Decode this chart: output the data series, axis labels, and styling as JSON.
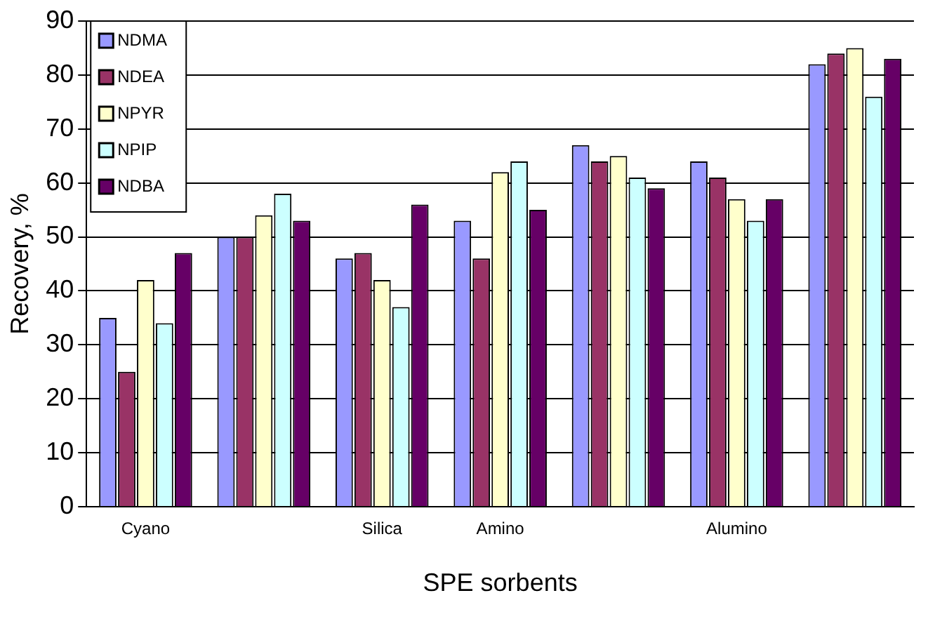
{
  "chart_data": {
    "type": "bar",
    "xlabel": "SPE sorbents",
    "ylabel": "Recovery, %",
    "categories": [
      "Cyano",
      null,
      "Silica",
      "Amino",
      null,
      "Alumino",
      null
    ],
    "series": [
      {
        "name": "NDMA",
        "color": "#9999ff",
        "values": [
          35,
          50,
          46,
          53,
          67,
          64,
          82
        ]
      },
      {
        "name": "NDEA",
        "color": "#993366",
        "values": [
          25,
          50,
          47,
          46,
          64,
          61,
          84
        ]
      },
      {
        "name": "NPYR",
        "color": "#ffffcc",
        "values": [
          42,
          54,
          42,
          62,
          65,
          57,
          85
        ]
      },
      {
        "name": "NPIP",
        "color": "#ccffff",
        "values": [
          34,
          58,
          37,
          64,
          61,
          53,
          76
        ]
      },
      {
        "name": "NDBA",
        "color": "#660066",
        "values": [
          47,
          53,
          56,
          55,
          59,
          57,
          83
        ]
      }
    ],
    "ylim": [
      0,
      90
    ],
    "yticks": [
      0,
      10,
      20,
      30,
      40,
      50,
      60,
      70,
      80,
      90
    ],
    "grid": "y",
    "legend": "top left"
  }
}
